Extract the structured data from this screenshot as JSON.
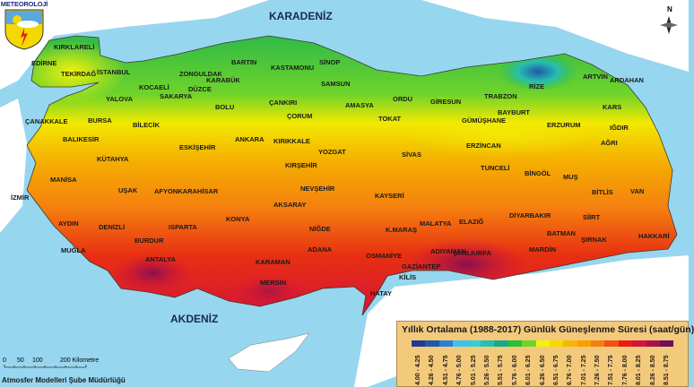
{
  "logo": {
    "text": "METEOROLOJİ"
  },
  "seas": {
    "north": "KARADENİZ",
    "south": "AKDENİZ"
  },
  "compass": {
    "label": "N"
  },
  "cities": [
    "KIRKLARELİ",
    "EDİRNE",
    "TEKİRDAĞ",
    "İSTANBUL",
    "KOCAELİ",
    "YALOVA",
    "SAKARYA",
    "DÜZCE",
    "ZONGULDAK",
    "BARTIN",
    "KARABÜK",
    "KASTAMONU",
    "SİNOP",
    "BOLU",
    "ÇANKIRI",
    "SAMSUN",
    "ÇORUM",
    "AMASYA",
    "ORDU",
    "GİRESUN",
    "TRABZON",
    "RİZE",
    "ARTVİN",
    "ARDAHAN",
    "KARS",
    "IĞDIR",
    "AĞRI",
    "ERZURUM",
    "BAYBURT",
    "GÜMÜŞHANE",
    "TOKAT",
    "ERZİNCAN",
    "ÇANAKKALE",
    "BURSA",
    "BİLECİK",
    "BALIKESİR",
    "ESKİŞEHİR",
    "ANKARA",
    "KIRIKKALE",
    "YOZGAT",
    "SİVAS",
    "KÜTAHYA",
    "KIRŞEHİR",
    "TUNCELİ",
    "BİNGÖL",
    "MUŞ",
    "BİTLİS",
    "VAN",
    "MANİSA",
    "İZMİR",
    "UŞAK",
    "AFYONKARAHİSAR",
    "NEVŞEHİR",
    "KAYSERİ",
    "MALATYA",
    "ELAZIĞ",
    "DİYARBAKIR",
    "SİİRT",
    "BATMAN",
    "ŞIRNAK",
    "HAKKARİ",
    "AYDIN",
    "DENİZLİ",
    "ISPARTA",
    "KONYA",
    "AKSARAY",
    "NİĞDE",
    "K.MARAŞ",
    "ADIYAMAN",
    "MARDİN",
    "ŞANLIURFA",
    "MUĞLA",
    "BURDUR",
    "ANTALYA",
    "KARAMAN",
    "MERSİN",
    "ADANA",
    "OSMANİYE",
    "GAZİANTEP",
    "KİLİS",
    "HATAY"
  ],
  "legend": {
    "title": "Yıllık Ortalama (1988-2017) Günlük Güneşlenme Süresi (saat/gün)",
    "classes": [
      {
        "range": "4.00 - 4.25",
        "color": "#1f3b8f"
      },
      {
        "range": "4.26 - 4.50",
        "color": "#1e5aa8"
      },
      {
        "range": "4.51 - 4.75",
        "color": "#2c7fd0"
      },
      {
        "range": "4.76 - 5.00",
        "color": "#3fc0ec"
      },
      {
        "range": "5.01 - 5.25",
        "color": "#35cdd6"
      },
      {
        "range": "5.26 - 5.50",
        "color": "#27bfb0"
      },
      {
        "range": "5.51 - 5.75",
        "color": "#19a88a"
      },
      {
        "range": "5.76 - 6.00",
        "color": "#2bbf3d"
      },
      {
        "range": "6.01 - 6.25",
        "color": "#6fd42a"
      },
      {
        "range": "6.26 - 6.50",
        "color": "#f2f20a"
      },
      {
        "range": "6.51 - 6.75",
        "color": "#f6d800"
      },
      {
        "range": "6.76 - 7.00",
        "color": "#f5b800"
      },
      {
        "range": "7.01 - 7.25",
        "color": "#f7a000"
      },
      {
        "range": "7.26 - 7.50",
        "color": "#f57e10"
      },
      {
        "range": "7.51 - 7.75",
        "color": "#f25012"
      },
      {
        "range": "7.76 - 8.00",
        "color": "#e81e14"
      },
      {
        "range": "8.01 - 8.25",
        "color": "#d4123a"
      },
      {
        "range": "8.26 - 8.50",
        "color": "#a8104a"
      },
      {
        "range": "8.51 - 8.75",
        "color": "#6e0f55"
      }
    ]
  },
  "scale": {
    "ticks": [
      "0",
      "50",
      "100",
      "200 Kilometre"
    ]
  },
  "credit": "Atmosfer Modelleri Şube Müdürlüğü"
}
